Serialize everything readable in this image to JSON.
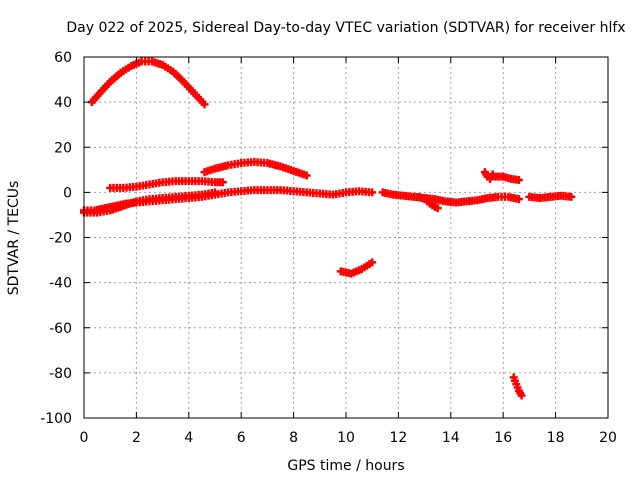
{
  "chart_data": {
    "type": "scatter",
    "title": "Day 022 of 2025, Sidereal Day-to-day VTEC variation (SDTVAR) for receiver hlfx",
    "xlabel": "GPS time / hours",
    "ylabel": "SDTVAR / TECUs",
    "xlim": [
      0,
      20
    ],
    "ylim": [
      -100,
      60
    ],
    "xticks": [
      0,
      2,
      4,
      6,
      8,
      10,
      12,
      14,
      16,
      18,
      20
    ],
    "yticks": [
      -100,
      -80,
      -60,
      -40,
      -20,
      0,
      20,
      40,
      60
    ],
    "grid": true,
    "marker": "plus",
    "color": "#ff0000",
    "series": [
      {
        "name": "arc-high",
        "points": [
          [
            0.3,
            40
          ],
          [
            0.6,
            44
          ],
          [
            1.0,
            49
          ],
          [
            1.4,
            53
          ],
          [
            1.8,
            56
          ],
          [
            2.2,
            58
          ],
          [
            2.6,
            58
          ],
          [
            3.0,
            56.5
          ],
          [
            3.4,
            53.5
          ],
          [
            3.8,
            49
          ],
          [
            4.2,
            44
          ],
          [
            4.6,
            39
          ]
        ]
      },
      {
        "name": "arc-mid-left",
        "points": [
          [
            1.0,
            2
          ],
          [
            1.5,
            2
          ],
          [
            2.0,
            2.5
          ],
          [
            2.5,
            3.5
          ],
          [
            3.0,
            4.5
          ],
          [
            3.5,
            5
          ],
          [
            4.0,
            5
          ],
          [
            4.5,
            5
          ],
          [
            5.0,
            4.5
          ],
          [
            5.3,
            4.5
          ]
        ]
      },
      {
        "name": "arc-mid-hump",
        "points": [
          [
            4.6,
            9
          ],
          [
            5.0,
            10.5
          ],
          [
            5.5,
            12
          ],
          [
            6.0,
            13
          ],
          [
            6.5,
            13.5
          ],
          [
            7.0,
            13
          ],
          [
            7.5,
            11.5
          ],
          [
            8.0,
            9.5
          ],
          [
            8.5,
            7.5
          ]
        ]
      },
      {
        "name": "baseline-low",
        "points": [
          [
            0.0,
            -8
          ],
          [
            0.4,
            -8
          ],
          [
            0.8,
            -7
          ],
          [
            1.2,
            -6
          ],
          [
            1.6,
            -5
          ],
          [
            2.0,
            -4.5
          ],
          [
            2.5,
            -4
          ],
          [
            3.0,
            -3.5
          ],
          [
            3.5,
            -3
          ],
          [
            4.0,
            -2.5
          ],
          [
            4.5,
            -2
          ],
          [
            5.0,
            -1
          ],
          [
            5.5,
            0
          ],
          [
            6.0,
            0.5
          ],
          [
            6.5,
            1
          ],
          [
            7.0,
            1
          ],
          [
            7.5,
            1
          ],
          [
            8.0,
            0.5
          ],
          [
            8.5,
            0
          ],
          [
            9.0,
            -0.5
          ],
          [
            9.5,
            -1
          ],
          [
            10.0,
            0
          ],
          [
            10.5,
            0.5
          ],
          [
            11.0,
            0
          ]
        ]
      },
      {
        "name": "baseline-early",
        "points": [
          [
            0.0,
            -9
          ],
          [
            0.5,
            -9
          ],
          [
            1.0,
            -8
          ],
          [
            1.5,
            -6
          ],
          [
            2.0,
            -4
          ],
          [
            2.5,
            -3
          ],
          [
            3.0,
            -2.5
          ],
          [
            3.5,
            -2
          ],
          [
            4.0,
            -1.5
          ],
          [
            4.5,
            -1
          ],
          [
            5.0,
            0
          ]
        ]
      },
      {
        "name": "baseline-right",
        "points": [
          [
            11.4,
            0
          ],
          [
            11.8,
            -1
          ],
          [
            12.2,
            -1.5
          ],
          [
            12.6,
            -2
          ],
          [
            13.0,
            -2.5
          ],
          [
            13.4,
            -3
          ],
          [
            13.8,
            -4
          ],
          [
            14.2,
            -4.5
          ],
          [
            14.6,
            -4
          ],
          [
            15.0,
            -3.5
          ],
          [
            15.4,
            -2.5
          ],
          [
            15.8,
            -2
          ],
          [
            16.2,
            -2
          ],
          [
            16.6,
            -3
          ]
        ]
      },
      {
        "name": "baseline-dip",
        "points": [
          [
            12.8,
            -2
          ],
          [
            13.0,
            -3
          ],
          [
            13.2,
            -5
          ],
          [
            13.4,
            -6.5
          ],
          [
            13.5,
            -7
          ]
        ]
      },
      {
        "name": "baseline-far-right",
        "points": [
          [
            17.0,
            -2
          ],
          [
            17.4,
            -2.5
          ],
          [
            17.8,
            -2
          ],
          [
            18.2,
            -1.5
          ],
          [
            18.6,
            -2
          ]
        ]
      },
      {
        "name": "short-hook",
        "points": [
          [
            15.3,
            9
          ],
          [
            15.4,
            7
          ],
          [
            15.5,
            6
          ],
          [
            15.6,
            8
          ],
          [
            15.7,
            7
          ],
          [
            16.0,
            7
          ],
          [
            16.3,
            6
          ],
          [
            16.6,
            5.5
          ]
        ]
      },
      {
        "name": "low-arc",
        "points": [
          [
            9.8,
            -35
          ],
          [
            10.2,
            -36
          ],
          [
            10.6,
            -34
          ],
          [
            11.0,
            -31
          ]
        ]
      },
      {
        "name": "low-drop",
        "points": [
          [
            16.4,
            -82
          ],
          [
            16.5,
            -85
          ],
          [
            16.6,
            -88
          ],
          [
            16.7,
            -90
          ]
        ]
      }
    ]
  }
}
